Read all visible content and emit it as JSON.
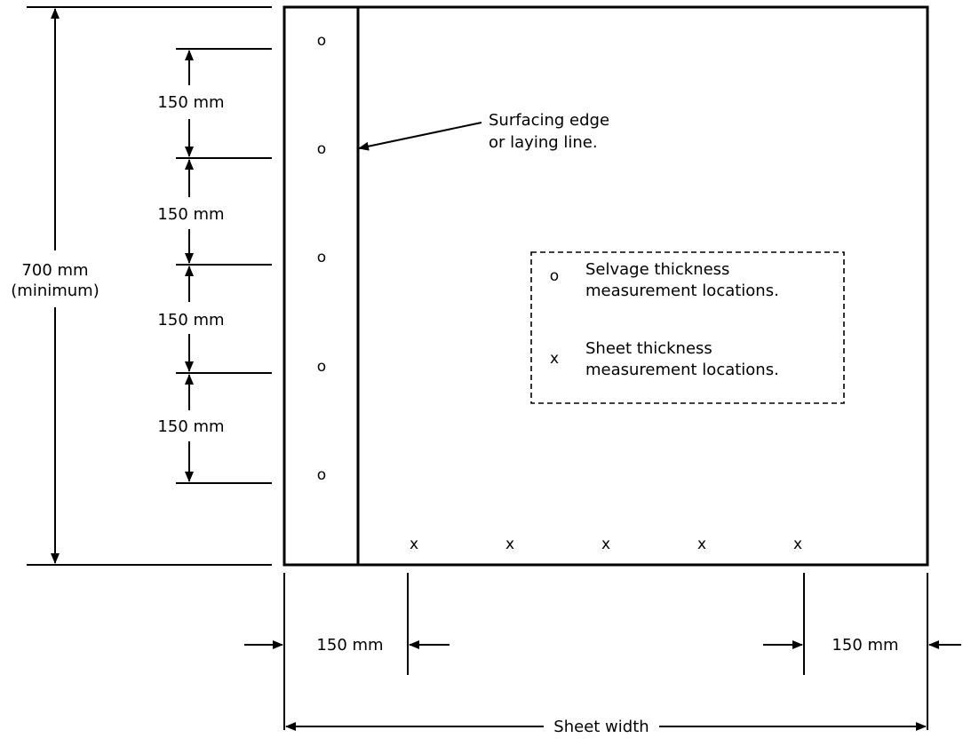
{
  "labels": {
    "overall_height": "700 mm",
    "overall_height_note": "(minimum)",
    "spacing_1": "150 mm",
    "spacing_2": "150 mm",
    "spacing_3": "150 mm",
    "spacing_4": "150 mm",
    "edge_offset_left": "150 mm",
    "edge_offset_right": "150 mm",
    "sheet_width": "Sheet width",
    "surfacing_edge_line1": "Surfacing edge",
    "surfacing_edge_line2": "or laying line."
  },
  "legend": {
    "selvage_symbol": "o",
    "selvage_line1": "Selvage thickness",
    "selvage_line2": "measurement locations.",
    "sheet_symbol": "x",
    "sheet_line1": "Sheet thickness",
    "sheet_line2": "measurement locations."
  },
  "marks": {
    "selvage_symbol": "o",
    "sheet_symbol": "x"
  }
}
